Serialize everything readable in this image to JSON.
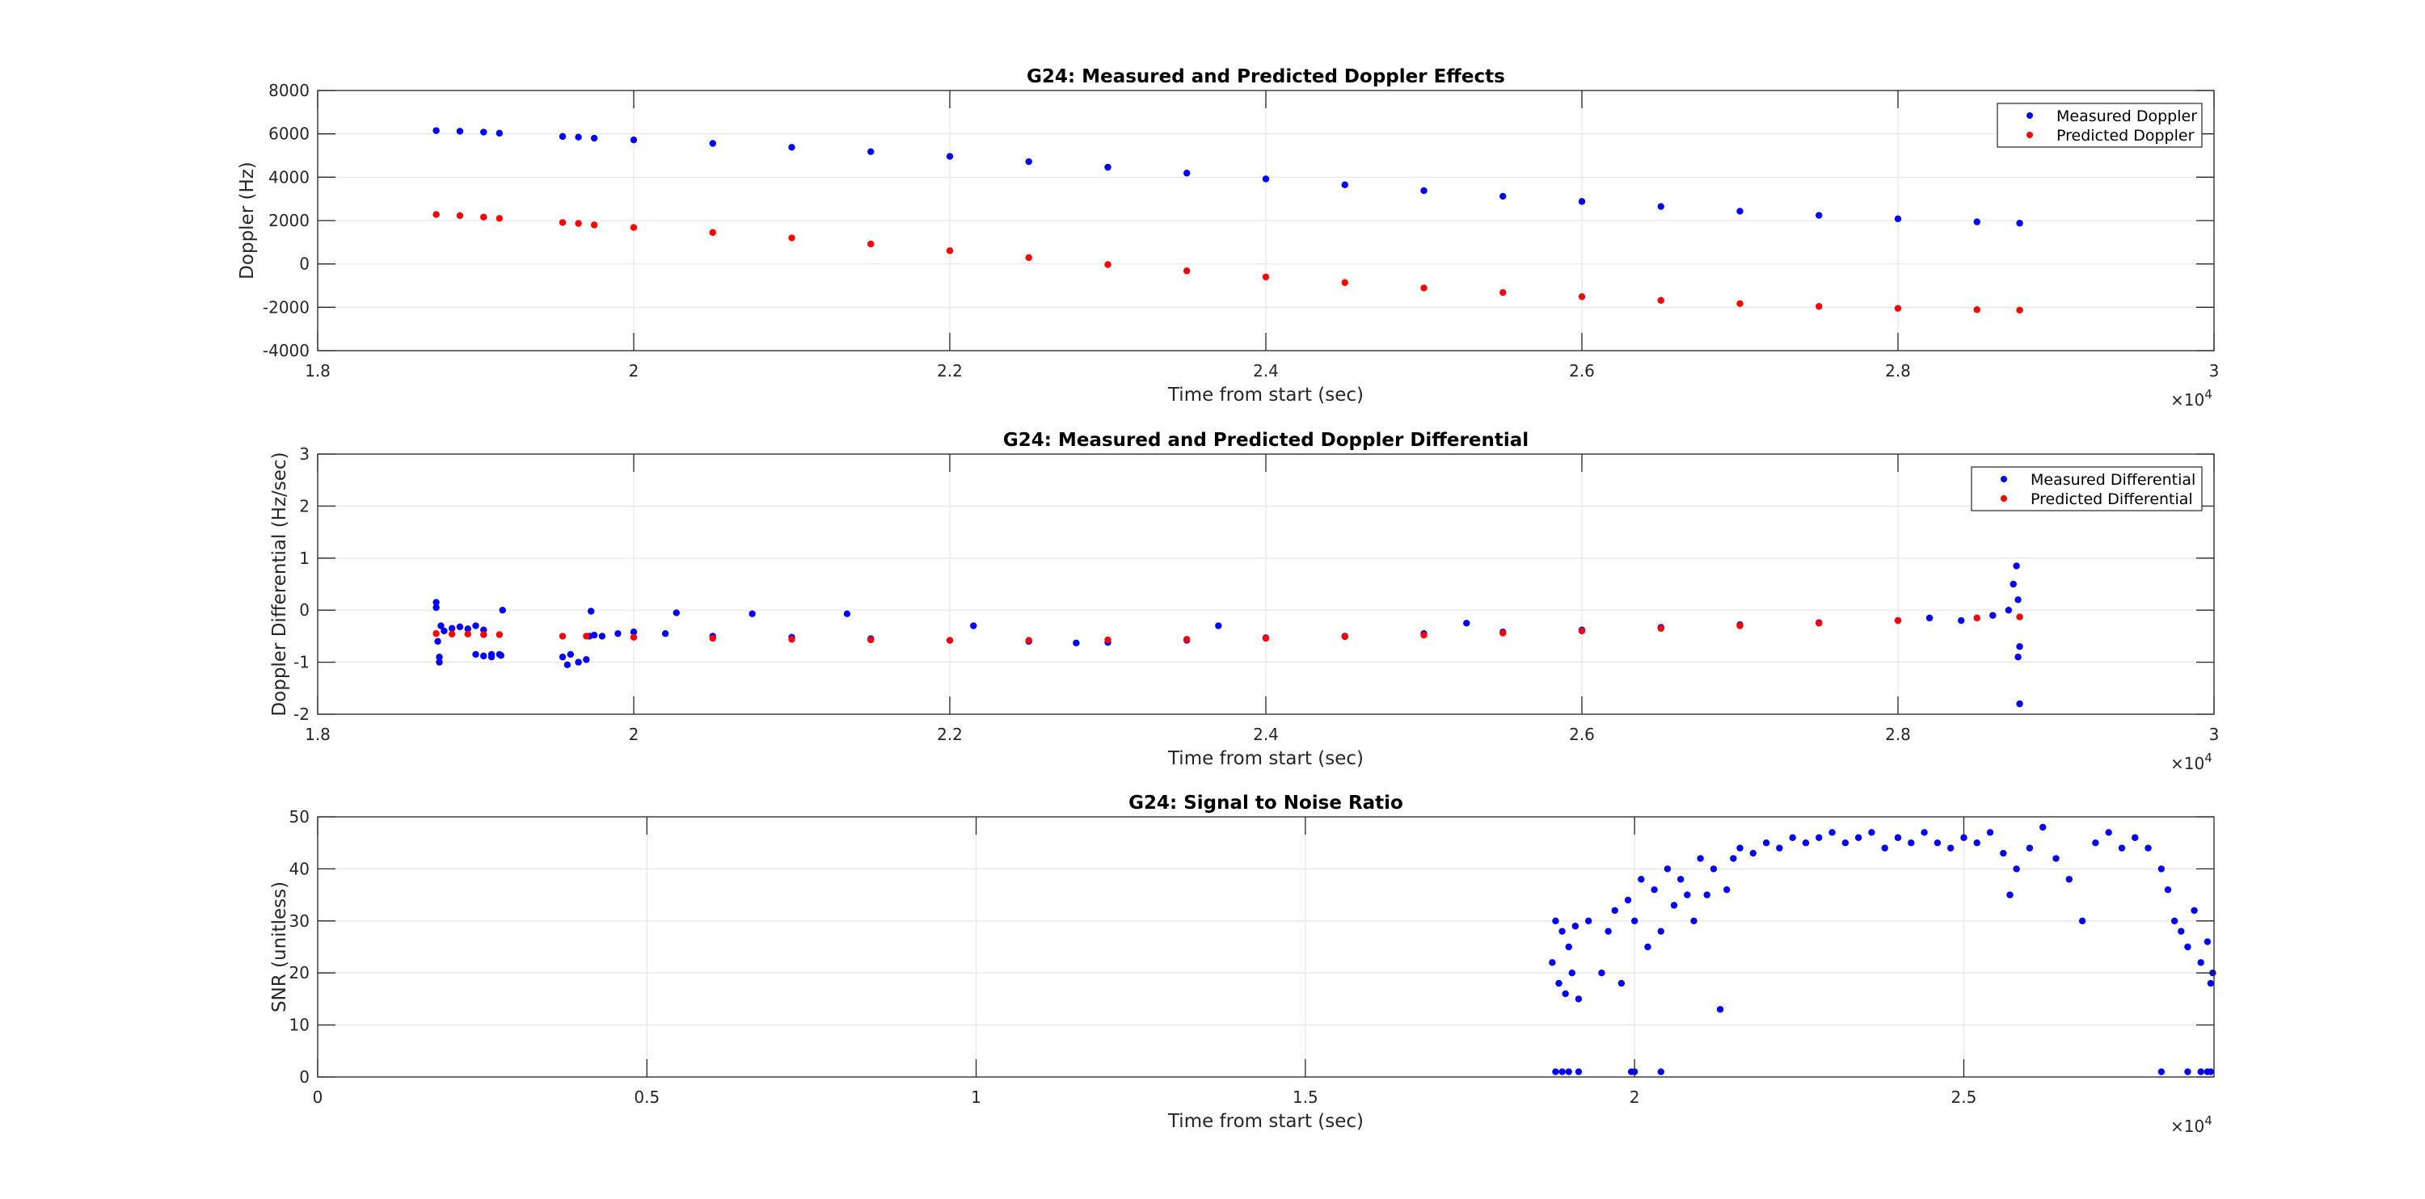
{
  "chart_data": [
    {
      "type": "scatter",
      "title": "G24: Measured and Predicted Doppler Effects",
      "xlabel": "Time from start (sec)",
      "ylabel": "Doppler (Hz)",
      "x_exponent": "×10",
      "x_exponent_power": "4",
      "xlim": [
        1.8,
        3.0
      ],
      "ylim": [
        -4000,
        8000
      ],
      "xticks": [
        "1.8",
        "2",
        "2.2",
        "2.4",
        "2.6",
        "2.8",
        "3"
      ],
      "yticks": [
        "-4000",
        "-2000",
        "0",
        "2000",
        "4000",
        "6000",
        "8000"
      ],
      "grid": true,
      "legend_position": "top-right",
      "series": [
        {
          "name": "Measured Doppler",
          "color": "#0000ff",
          "x": [
            1.875,
            1.89,
            1.905,
            1.915,
            1.955,
            1.965,
            1.975,
            2.0,
            2.05,
            2.1,
            2.15,
            2.2,
            2.25,
            2.3,
            2.35,
            2.4,
            2.45,
            2.5,
            2.55,
            2.6,
            2.65,
            2.7,
            2.75,
            2.8,
            2.85,
            2.877
          ],
          "y": [
            6150,
            6120,
            6080,
            6030,
            5880,
            5850,
            5800,
            5720,
            5560,
            5380,
            5180,
            4960,
            4720,
            4460,
            4190,
            3920,
            3650,
            3380,
            3120,
            2880,
            2650,
            2430,
            2240,
            2080,
            1940,
            1880
          ]
        },
        {
          "name": "Predicted Doppler",
          "color": "#ff0000",
          "x": [
            1.875,
            1.89,
            1.905,
            1.915,
            1.955,
            1.965,
            1.975,
            2.0,
            2.05,
            2.1,
            2.15,
            2.2,
            2.25,
            2.3,
            2.35,
            2.4,
            2.45,
            2.5,
            2.55,
            2.6,
            2.65,
            2.7,
            2.75,
            2.8,
            2.85,
            2.877
          ],
          "y": [
            2280,
            2230,
            2160,
            2100,
            1910,
            1870,
            1800,
            1680,
            1450,
            1200,
            920,
            610,
            290,
            -30,
            -320,
            -600,
            -860,
            -1110,
            -1320,
            -1510,
            -1680,
            -1830,
            -1960,
            -2050,
            -2110,
            -2130
          ]
        }
      ]
    },
    {
      "type": "scatter",
      "title": "G24: Measured and Predicted Doppler Differential",
      "xlabel": "Time from start (sec)",
      "ylabel": "Doppler Differential (Hz/sec)",
      "x_exponent": "×10",
      "x_exponent_power": "4",
      "xlim": [
        1.8,
        3.0
      ],
      "ylim": [
        -2,
        3
      ],
      "xticks": [
        "1.8",
        "2",
        "2.2",
        "2.4",
        "2.6",
        "2.8",
        "3"
      ],
      "yticks": [
        "-2",
        "-1",
        "0",
        "1",
        "2",
        "3"
      ],
      "grid": true,
      "legend_position": "top-right",
      "series": [
        {
          "name": "Measured Differential",
          "color": "#0000ff",
          "x": [
            1.875,
            1.876,
            1.877,
            1.878,
            1.88,
            1.885,
            1.89,
            1.895,
            1.9,
            1.905,
            1.91,
            1.915,
            1.875,
            1.877,
            1.9,
            1.905,
            1.91,
            1.916,
            1.955,
            1.96,
            1.965,
            1.97,
            1.958,
            1.972,
            1.975,
            1.98,
            1.99,
            2.0,
            2.02,
            2.05,
            2.1,
            2.15,
            2.2,
            2.25,
            2.28,
            2.3,
            2.35,
            2.4,
            2.45,
            2.5,
            2.55,
            2.6,
            2.65,
            2.7,
            2.75,
            2.8,
            2.82,
            2.84,
            2.86,
            2.87,
            2.873,
            2.875,
            2.876,
            2.877,
            2.876,
            2.877,
            2.027,
            2.075,
            2.135,
            2.215,
            2.37,
            2.527,
            1.973,
            1.917
          ],
          "y": [
            0.15,
            -0.6,
            -0.9,
            -0.3,
            -0.4,
            -0.35,
            -0.32,
            -0.36,
            -0.3,
            -0.38,
            -0.85,
            -0.85,
            0.05,
            -1.0,
            -0.85,
            -0.88,
            -0.9,
            -0.87,
            -0.9,
            -0.85,
            -1.0,
            -0.95,
            -1.05,
            -0.5,
            -0.48,
            -0.5,
            -0.45,
            -0.42,
            -0.45,
            -0.5,
            -0.52,
            -0.55,
            -0.58,
            -0.6,
            -0.63,
            -0.62,
            -0.58,
            -0.53,
            -0.5,
            -0.45,
            -0.42,
            -0.38,
            -0.33,
            -0.28,
            -0.24,
            -0.2,
            -0.15,
            -0.2,
            -0.1,
            0.0,
            0.5,
            0.85,
            0.2,
            -0.7,
            -0.9,
            -1.8,
            -0.05,
            -0.07,
            -0.07,
            -0.3,
            -0.3,
            -0.25,
            -0.02,
            0.0
          ]
        },
        {
          "name": "Predicted Differential",
          "color": "#ff0000",
          "x": [
            1.875,
            1.885,
            1.895,
            1.905,
            1.915,
            1.955,
            1.97,
            2.0,
            2.05,
            2.1,
            2.15,
            2.2,
            2.25,
            2.3,
            2.35,
            2.4,
            2.45,
            2.5,
            2.55,
            2.6,
            2.65,
            2.7,
            2.75,
            2.8,
            2.85,
            2.877
          ],
          "y": [
            -0.45,
            -0.46,
            -0.46,
            -0.47,
            -0.47,
            -0.5,
            -0.5,
            -0.52,
            -0.54,
            -0.56,
            -0.57,
            -0.58,
            -0.58,
            -0.57,
            -0.56,
            -0.54,
            -0.51,
            -0.48,
            -0.44,
            -0.4,
            -0.35,
            -0.3,
            -0.25,
            -0.2,
            -0.15,
            -0.13
          ]
        }
      ]
    },
    {
      "type": "scatter",
      "title": "G24: Signal to Noise Ratio",
      "xlabel": "Time from start (sec)",
      "ylabel": "SNR (unitless)",
      "x_exponent": "×10",
      "x_exponent_power": "4",
      "xlim": [
        0,
        2.88
      ],
      "ylim": [
        0,
        50
      ],
      "xticks": [
        "0",
        "0.5",
        "1",
        "1.5",
        "2",
        "2.5"
      ],
      "yticks": [
        "0",
        "10",
        "20",
        "30",
        "40",
        "50"
      ],
      "grid": true,
      "series": [
        {
          "name": "",
          "color": "#0000ff",
          "x": [
            1.875,
            1.88,
            1.885,
            1.89,
            1.895,
            1.9,
            1.905,
            1.91,
            1.915,
            1.93,
            1.95,
            1.96,
            1.97,
            1.98,
            1.99,
            2.0,
            2.01,
            2.02,
            2.03,
            2.04,
            2.05,
            2.06,
            2.07,
            2.08,
            2.09,
            2.1,
            2.11,
            2.12,
            2.13,
            2.14,
            2.15,
            2.16,
            2.18,
            2.2,
            2.22,
            2.24,
            2.26,
            2.28,
            2.3,
            2.32,
            2.34,
            2.36,
            2.38,
            2.4,
            2.42,
            2.44,
            2.46,
            2.48,
            2.5,
            2.52,
            2.54,
            2.56,
            2.57,
            2.58,
            2.6,
            2.62,
            2.64,
            2.66,
            2.68,
            2.7,
            2.72,
            2.74,
            2.76,
            2.78,
            2.8,
            2.81,
            2.82,
            2.83,
            2.84,
            2.85,
            2.86,
            2.87,
            2.875,
            2.878,
            1.88,
            1.89,
            1.9,
            1.915,
            1.995,
            2.0,
            2.04,
            2.8,
            2.84,
            2.86,
            2.87,
            2.875
          ],
          "y": [
            22,
            30,
            18,
            28,
            16,
            25,
            20,
            29,
            15,
            30,
            20,
            28,
            32,
            18,
            34,
            30,
            38,
            25,
            36,
            28,
            40,
            33,
            38,
            35,
            30,
            42,
            35,
            40,
            13,
            36,
            42,
            44,
            43,
            45,
            44,
            46,
            45,
            46,
            47,
            45,
            46,
            47,
            44,
            46,
            45,
            47,
            45,
            44,
            46,
            45,
            47,
            43,
            35,
            40,
            44,
            48,
            42,
            38,
            30,
            45,
            47,
            44,
            46,
            44,
            40,
            36,
            30,
            28,
            25,
            32,
            22,
            26,
            18,
            20,
            1,
            1,
            1,
            1,
            1,
            1,
            1,
            1,
            1,
            1,
            1,
            1
          ]
        }
      ]
    }
  ]
}
